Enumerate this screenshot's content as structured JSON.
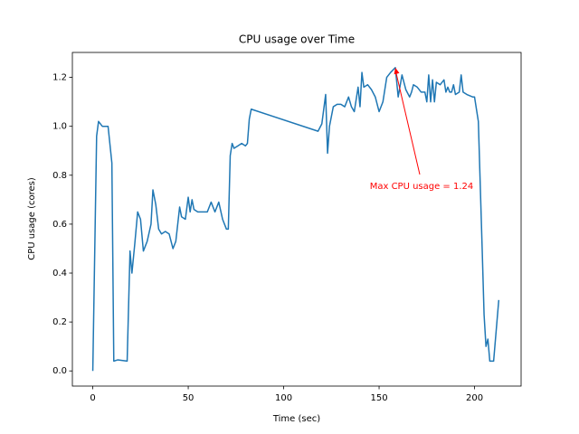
{
  "chart_data": {
    "type": "line",
    "title": "CPU usage over Time",
    "x_label": "Time (sec)",
    "y_label": "CPU usage (cores)",
    "annotation": "Max CPU usage = 1.24",
    "series": [
      {
        "name": "CPU usage",
        "color": "#1f77b4",
        "x": [
          0,
          2,
          3,
          5,
          8,
          10,
          11,
          13,
          18,
          19.5,
          20.5,
          22,
          23.5,
          25,
          26.5,
          28.5,
          30.5,
          31.5,
          33,
          34.5,
          36,
          38,
          40,
          42,
          43.5,
          45.5,
          46.5,
          48.5,
          50,
          51,
          52,
          53,
          55,
          57,
          60,
          62,
          64,
          66,
          68,
          70,
          71,
          72,
          73,
          74,
          76,
          78,
          80,
          81,
          82,
          83,
          118,
          120,
          122,
          123,
          124,
          126,
          128,
          130,
          132,
          134,
          135.5,
          137,
          139,
          140,
          141,
          142,
          144,
          146,
          148,
          150,
          152,
          154,
          156,
          158.5,
          160,
          162,
          164,
          166,
          167,
          168,
          170,
          172,
          174,
          175,
          176,
          177,
          178,
          179,
          180,
          182,
          184,
          185,
          186,
          187,
          188,
          189,
          190,
          192,
          193,
          194,
          196,
          199,
          200,
          202,
          204,
          205,
          206,
          207,
          208,
          210,
          212.7
        ],
        "values": [
          0.0,
          0.96,
          1.02,
          1.0,
          1.0,
          0.85,
          0.04,
          0.045,
          0.04,
          0.49,
          0.4,
          0.52,
          0.65,
          0.62,
          0.49,
          0.53,
          0.6,
          0.74,
          0.68,
          0.58,
          0.56,
          0.57,
          0.56,
          0.5,
          0.53,
          0.67,
          0.63,
          0.62,
          0.71,
          0.65,
          0.7,
          0.66,
          0.65,
          0.65,
          0.65,
          0.69,
          0.65,
          0.69,
          0.62,
          0.58,
          0.58,
          0.88,
          0.93,
          0.91,
          0.92,
          0.93,
          0.92,
          0.93,
          1.03,
          1.07,
          0.98,
          1.01,
          1.13,
          0.89,
          1.0,
          1.08,
          1.09,
          1.09,
          1.08,
          1.12,
          1.08,
          1.06,
          1.16,
          1.08,
          1.22,
          1.16,
          1.17,
          1.15,
          1.12,
          1.06,
          1.1,
          1.2,
          1.22,
          1.24,
          1.12,
          1.21,
          1.15,
          1.12,
          1.14,
          1.17,
          1.16,
          1.14,
          1.14,
          1.1,
          1.21,
          1.1,
          1.19,
          1.1,
          1.18,
          1.17,
          1.19,
          1.14,
          1.16,
          1.14,
          1.14,
          1.17,
          1.13,
          1.14,
          1.21,
          1.14,
          1.13,
          1.12,
          1.12,
          1.02,
          0.5,
          0.23,
          0.1,
          0.13,
          0.04,
          0.04,
          0.29
        ]
      }
    ],
    "annotation_color": "#ff0000",
    "xlim": [
      -10.7,
      224.4
    ],
    "ylim": [
      -0.062,
      1.302
    ],
    "xticks": [
      0,
      50,
      100,
      150,
      200
    ],
    "yticks": [
      {
        "value": 0,
        "label": "0.0"
      },
      {
        "value": 0.2,
        "label": "0.2"
      },
      {
        "value": 0.4,
        "label": "0.4"
      },
      {
        "value": 0.6,
        "label": "0.6"
      },
      {
        "value": 0.8,
        "label": "0.8"
      },
      {
        "value": 1,
        "label": "1.0"
      },
      {
        "value": 1.2,
        "label": "1.2"
      }
    ]
  }
}
